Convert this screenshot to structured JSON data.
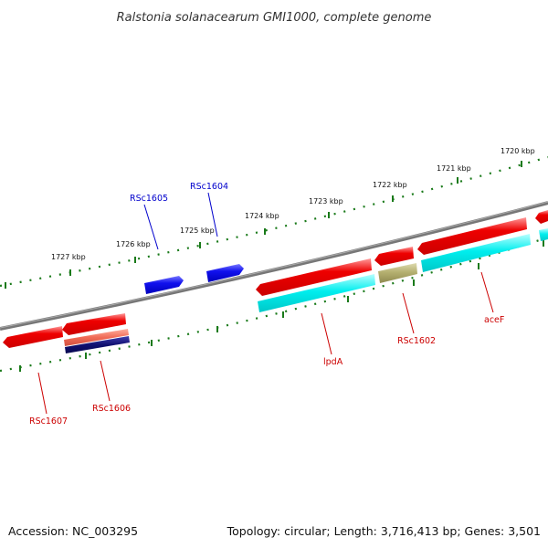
{
  "title": "Ralstonia solanacearum GMI1000, complete genome",
  "footer": {
    "accession": "Accession: NC_003295",
    "summary": "Topology: circular; Length: 3,716,413 bp; Genes: 3,501"
  },
  "ticks": [
    {
      "label": "1720 kbp"
    },
    {
      "label": "1721 kbp"
    },
    {
      "label": "1722 kbp"
    },
    {
      "label": "1723 kbp"
    },
    {
      "label": "1724 kbp"
    },
    {
      "label": "1725 kbp"
    },
    {
      "label": "1726 kbp"
    },
    {
      "label": "1727 kbp"
    }
  ],
  "genes": [
    {
      "name": "RSc1605",
      "color": "#0000cc"
    },
    {
      "name": "RSc1604",
      "color": "#0000cc"
    },
    {
      "name": "lpdA",
      "color": "#cc0000"
    },
    {
      "name": "RSc1602",
      "color": "#cc0000"
    },
    {
      "name": "aceF",
      "color": "#cc0000"
    },
    {
      "name": "RSc1607",
      "color": "#cc0000"
    },
    {
      "name": "RSc1606",
      "color": "#cc0000"
    }
  ],
  "colors": {
    "cds_red": "#ee0000",
    "cds_blue": "#1111ee",
    "cds_cyan": "#00eeee",
    "cds_olive": "#b5b070",
    "cds_salmon": "#f06a55",
    "cds_navy": "#101070",
    "backbone": "#777777",
    "tick_dots": "#1a7a1a"
  }
}
